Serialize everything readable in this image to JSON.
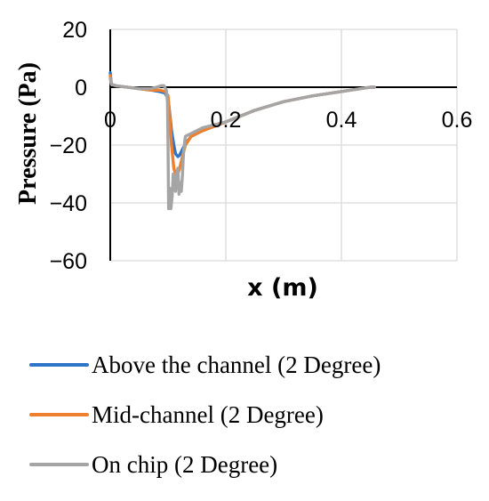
{
  "chart_data": {
    "type": "line",
    "title": "",
    "xlabel": "x (m)",
    "ylabel": "Pressure (Pa)",
    "xlim": [
      0,
      0.6
    ],
    "ylim": [
      -60,
      20
    ],
    "x_ticks": [
      0,
      0.2,
      0.4,
      0.6
    ],
    "x_tick_labels": [
      "0",
      "0.2",
      "0.4",
      "0.6"
    ],
    "y_ticks": [
      20,
      0,
      -20,
      -40,
      -60
    ],
    "y_tick_labels": [
      "20",
      "0",
      "−20",
      "−40",
      "−60"
    ],
    "grid": true,
    "legend_position": "bottom",
    "series": [
      {
        "name": "Above the channel (2 Degree)",
        "color": "#2E75C8",
        "x": [
          0,
          0.002,
          0.01,
          0.03,
          0.05,
          0.07,
          0.085,
          0.095,
          0.1,
          0.103,
          0.106,
          0.11,
          0.113,
          0.117,
          0.12,
          0.125,
          0.13,
          0.14,
          0.16,
          0.2,
          0.25,
          0.3,
          0.35,
          0.4,
          0.45,
          0.457
        ],
        "y": [
          5,
          1,
          0.5,
          0,
          -0.5,
          -1,
          -1.5,
          -2,
          -4,
          -9,
          -15,
          -20,
          -23,
          -24,
          -23.5,
          -21.5,
          -19.5,
          -17,
          -15,
          -12,
          -8,
          -5,
          -3,
          -1.5,
          0,
          0
        ]
      },
      {
        "name": "Mid-channel (2 Degree)",
        "color": "#F07F2D",
        "x": [
          0,
          0.002,
          0.01,
          0.03,
          0.05,
          0.07,
          0.085,
          0.095,
          0.1,
          0.103,
          0.106,
          0.11,
          0.113,
          0.117,
          0.12,
          0.125,
          0.13,
          0.14,
          0.16,
          0.2,
          0.25,
          0.3,
          0.35,
          0.4,
          0.45,
          0.457
        ],
        "y": [
          4,
          1,
          0.5,
          0,
          -0.5,
          -1,
          -1,
          -1.5,
          -3,
          -10,
          -20,
          -28,
          -30,
          -30,
          -28,
          -24,
          -20,
          -17,
          -15,
          -12,
          -8,
          -5,
          -3,
          -1.5,
          0,
          0
        ]
      },
      {
        "name": "On chip (2 Degree)",
        "color": "#A5A5A5",
        "x": [
          0,
          0.002,
          0.01,
          0.03,
          0.05,
          0.07,
          0.08,
          0.088,
          0.093,
          0.097,
          0.099,
          0.1,
          0.101,
          0.103,
          0.105,
          0.107,
          0.109,
          0.111,
          0.113,
          0.115,
          0.117,
          0.119,
          0.121,
          0.123,
          0.125,
          0.127,
          0.13,
          0.14,
          0.16,
          0.2,
          0.25,
          0.3,
          0.35,
          0.4,
          0.45,
          0.457
        ],
        "y": [
          3,
          1,
          0.5,
          0,
          -0.5,
          -0.5,
          0,
          0.5,
          0.5,
          -1,
          -5,
          -20,
          -42,
          -35,
          -42,
          -38,
          -30,
          -33,
          -36,
          -30,
          -28,
          -37,
          -33,
          -36,
          -30,
          -22,
          -17,
          -16,
          -14,
          -12,
          -8,
          -5,
          -3,
          -1.5,
          0,
          0
        ]
      }
    ]
  }
}
